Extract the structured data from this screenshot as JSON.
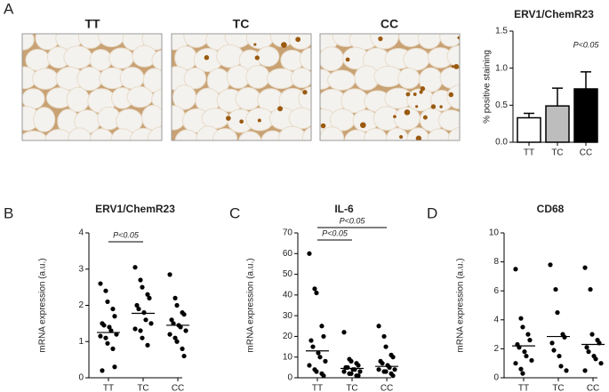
{
  "panel_labels": [
    "A",
    "B",
    "C",
    "D"
  ],
  "images": [
    {
      "label": "TT"
    },
    {
      "label": "TC"
    },
    {
      "label": "CC"
    }
  ],
  "chart_data": [
    {
      "type": "bar",
      "title": "ERV1/ChemR23",
      "ylabel": "% positive staining",
      "categories": [
        "TT",
        "TC",
        "CC"
      ],
      "values": [
        0.33,
        0.49,
        0.72
      ],
      "errors": [
        0.06,
        0.24,
        0.23
      ],
      "colors": [
        "#ffffff",
        "#bdbdbd",
        "#000000"
      ],
      "ylim": [
        0,
        1.5
      ],
      "yticks": [
        {
          "value": 0,
          "label": "0.0"
        },
        0.5,
        {
          "value": 1,
          "label": "1.0"
        },
        1.5
      ],
      "annotations": [
        "P<0.05"
      ]
    },
    {
      "type": "dot",
      "title": "ERV1/ChemR23",
      "ylabel": "mRNA expression (a.u.)",
      "categories": [
        "TT",
        "TC",
        "CC"
      ],
      "groups": [
        {
          "values": [
            2.6,
            2.4,
            2.1,
            1.9,
            1.7,
            1.5,
            1.45,
            1.4,
            1.3,
            1.2,
            1.15,
            1.1,
            0.95,
            0.8,
            0.3,
            0.2
          ],
          "mean": 1.25
        },
        {
          "values": [
            3.05,
            2.7,
            2.5,
            2.3,
            2.2,
            2.0,
            1.9,
            1.8,
            1.6,
            1.5,
            1.35,
            1.3,
            1.1,
            0.9
          ],
          "mean": 1.78
        },
        {
          "values": [
            2.85,
            2.2,
            2.0,
            1.8,
            1.75,
            1.6,
            1.5,
            1.45,
            1.4,
            1.3,
            1.2,
            1.1,
            1.0,
            0.8,
            0.6
          ],
          "mean": 1.45
        }
      ],
      "ylim": [
        0,
        4
      ],
      "yticks": [
        0,
        1,
        2,
        3,
        4
      ],
      "annotations": [
        "P<0.05"
      ]
    },
    {
      "type": "dot",
      "title": "IL-6",
      "ylabel": "mRNA expression (a.u.)",
      "categories": [
        "TT",
        "TC",
        "CC"
      ],
      "groups": [
        {
          "values": [
            60,
            43,
            41,
            25,
            20,
            18,
            15,
            12,
            10,
            8,
            6,
            4,
            3,
            2,
            1
          ],
          "mean": 13
        },
        {
          "values": [
            22,
            9,
            8,
            7,
            6,
            5,
            5,
            4,
            4,
            3,
            3,
            2,
            2,
            1,
            1
          ],
          "mean": 4.5
        },
        {
          "values": [
            25,
            20,
            15,
            11,
            10,
            8,
            7,
            6,
            5,
            4,
            4,
            3,
            3,
            2,
            1
          ],
          "mean": 5.5
        }
      ],
      "ylim": [
        0,
        70
      ],
      "yticks": [
        0,
        10,
        20,
        30,
        40,
        50,
        60,
        70
      ],
      "annotations": [
        "P<0.05",
        "P<0.05"
      ]
    },
    {
      "type": "dot",
      "title": "CD68",
      "ylabel": "mRNA expression (a.u.)",
      "categories": [
        "TT",
        "TC",
        "CC"
      ],
      "groups": [
        {
          "values": [
            7.5,
            4.1,
            3.5,
            3,
            2.6,
            2.3,
            2.1,
            1.8,
            1.5,
            1.2,
            1.0,
            0.6,
            0.3
          ],
          "mean": 2.2
        },
        {
          "values": [
            7.8,
            6.1,
            4.5,
            3.0,
            2.8,
            2.4,
            1.9,
            1.5,
            0.8,
            0.5
          ],
          "mean": 2.85
        },
        {
          "values": [
            7.6,
            6.1,
            3.0,
            2.6,
            2.4,
            2.1,
            1.8,
            1.5,
            1.3,
            1.0,
            0.5
          ],
          "mean": 2.3
        }
      ],
      "ylim": [
        0,
        10
      ],
      "yticks": [
        0,
        2,
        4,
        6,
        8,
        10
      ],
      "annotations": []
    }
  ]
}
